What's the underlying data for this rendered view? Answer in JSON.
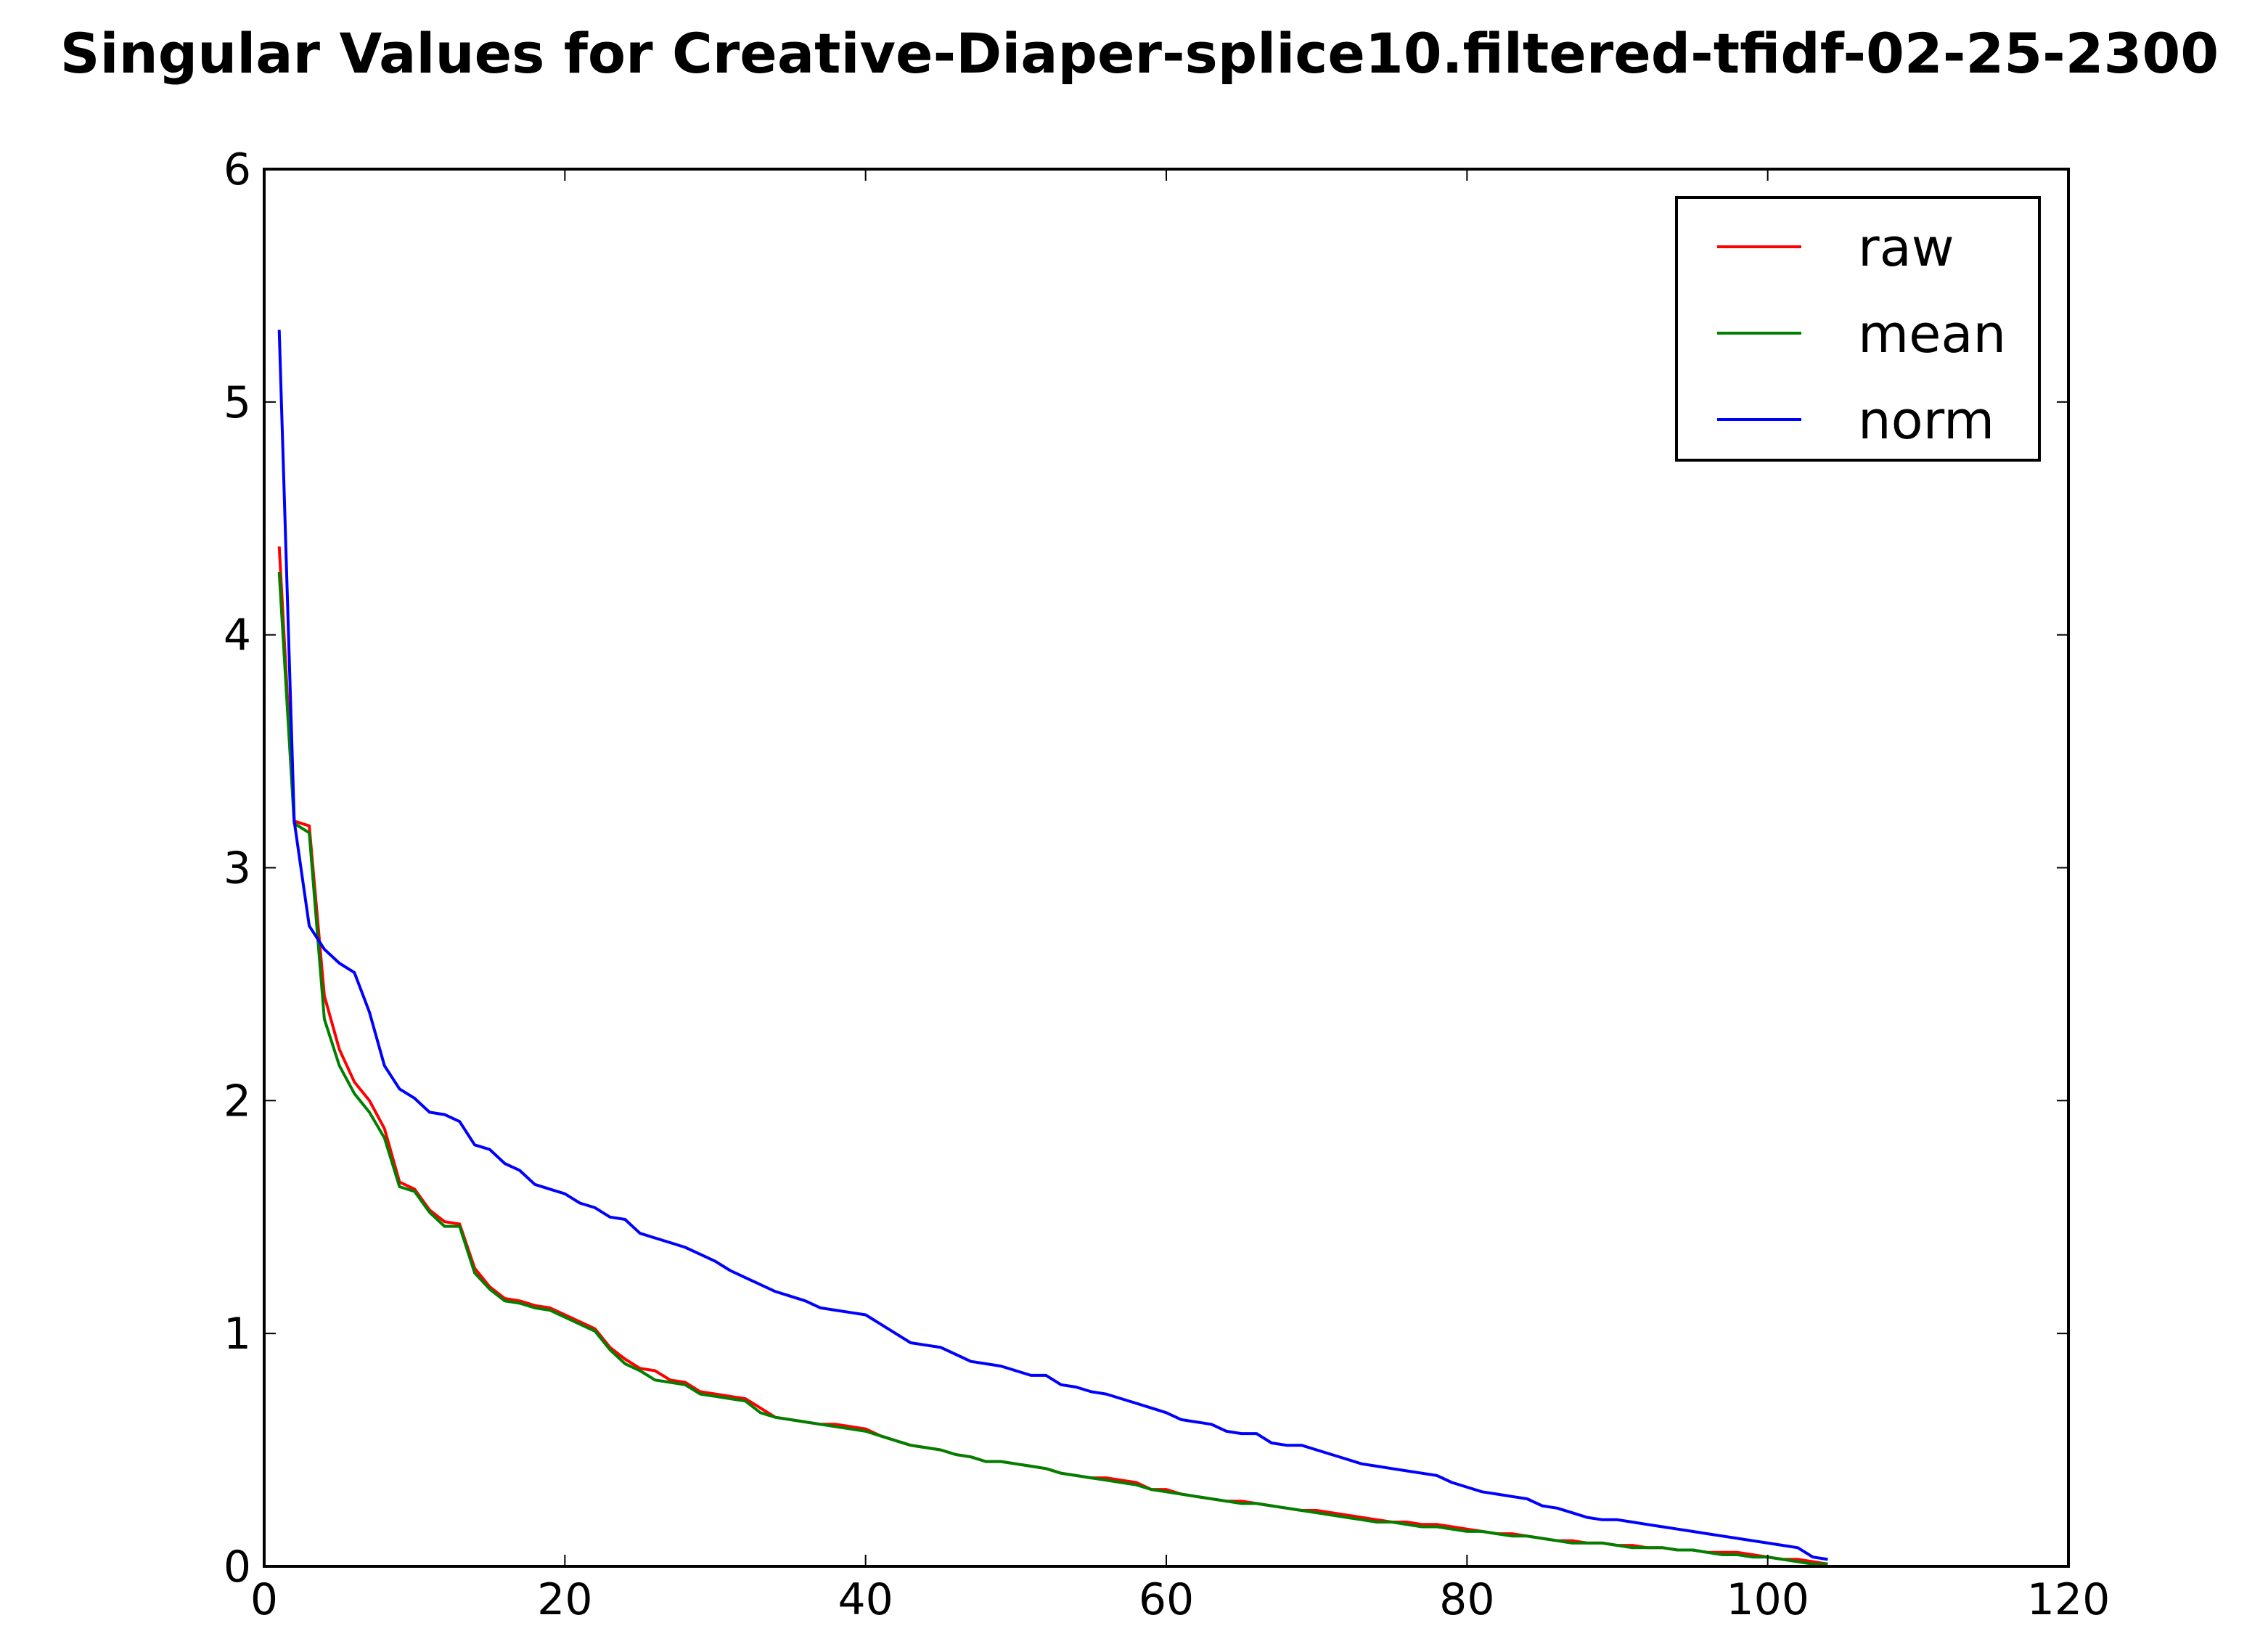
{
  "chart_data": {
    "type": "line",
    "title": "Singular Values for Creative-Diaper-splice10.filtered-tfidf-02-25-2300",
    "xlabel": "",
    "ylabel": "",
    "xlim": [
      0,
      120
    ],
    "ylim": [
      0,
      6
    ],
    "xticks": [
      0,
      20,
      40,
      60,
      80,
      100,
      120
    ],
    "yticks": [
      0,
      1,
      2,
      3,
      4,
      5,
      6
    ],
    "x_tick_labels": [
      "0",
      "20",
      "40",
      "60",
      "80",
      "100",
      "120"
    ],
    "y_tick_labels": [
      "0",
      "1",
      "2",
      "3",
      "4",
      "5",
      "6"
    ],
    "grid": false,
    "legend_position": "top-right",
    "series": [
      {
        "name": "raw",
        "color": "#ff0000",
        "points": [
          [
            1,
            4.38
          ],
          [
            2,
            3.2
          ],
          [
            3,
            3.18
          ],
          [
            4,
            2.45
          ],
          [
            5,
            2.22
          ],
          [
            6,
            2.08
          ],
          [
            7,
            2.0
          ],
          [
            8,
            1.88
          ],
          [
            9,
            1.65
          ],
          [
            10,
            1.62
          ],
          [
            11,
            1.53
          ],
          [
            12,
            1.48
          ],
          [
            13,
            1.47
          ],
          [
            14,
            1.28
          ],
          [
            15,
            1.2
          ],
          [
            16,
            1.15
          ],
          [
            17,
            1.14
          ],
          [
            18,
            1.12
          ],
          [
            19,
            1.11
          ],
          [
            20,
            1.08
          ],
          [
            21,
            1.05
          ],
          [
            22,
            1.02
          ],
          [
            23,
            0.94
          ],
          [
            24,
            0.89
          ],
          [
            25,
            0.85
          ],
          [
            26,
            0.84
          ],
          [
            27,
            0.8
          ],
          [
            28,
            0.79
          ],
          [
            29,
            0.75
          ],
          [
            30,
            0.74
          ],
          [
            31,
            0.73
          ],
          [
            32,
            0.72
          ],
          [
            33,
            0.68
          ],
          [
            34,
            0.64
          ],
          [
            35,
            0.63
          ],
          [
            36,
            0.62
          ],
          [
            37,
            0.61
          ],
          [
            38,
            0.61
          ],
          [
            39,
            0.6
          ],
          [
            40,
            0.59
          ],
          [
            41,
            0.56
          ],
          [
            42,
            0.54
          ],
          [
            43,
            0.52
          ],
          [
            44,
            0.51
          ],
          [
            45,
            0.5
          ],
          [
            46,
            0.48
          ],
          [
            47,
            0.47
          ],
          [
            48,
            0.45
          ],
          [
            49,
            0.45
          ],
          [
            50,
            0.44
          ],
          [
            51,
            0.43
          ],
          [
            52,
            0.42
          ],
          [
            53,
            0.4
          ],
          [
            54,
            0.39
          ],
          [
            55,
            0.38
          ],
          [
            56,
            0.38
          ],
          [
            57,
            0.37
          ],
          [
            58,
            0.36
          ],
          [
            59,
            0.33
          ],
          [
            60,
            0.33
          ],
          [
            61,
            0.31
          ],
          [
            62,
            0.3
          ],
          [
            63,
            0.29
          ],
          [
            64,
            0.28
          ],
          [
            65,
            0.28
          ],
          [
            66,
            0.27
          ],
          [
            67,
            0.26
          ],
          [
            68,
            0.25
          ],
          [
            69,
            0.24
          ],
          [
            70,
            0.24
          ],
          [
            71,
            0.23
          ],
          [
            72,
            0.22
          ],
          [
            73,
            0.21
          ],
          [
            74,
            0.2
          ],
          [
            75,
            0.19
          ],
          [
            76,
            0.19
          ],
          [
            77,
            0.18
          ],
          [
            78,
            0.18
          ],
          [
            79,
            0.17
          ],
          [
            80,
            0.16
          ],
          [
            81,
            0.15
          ],
          [
            82,
            0.14
          ],
          [
            83,
            0.14
          ],
          [
            84,
            0.13
          ],
          [
            85,
            0.12
          ],
          [
            86,
            0.11
          ],
          [
            87,
            0.11
          ],
          [
            88,
            0.1
          ],
          [
            89,
            0.1
          ],
          [
            90,
            0.09
          ],
          [
            91,
            0.09
          ],
          [
            92,
            0.08
          ],
          [
            93,
            0.08
          ],
          [
            94,
            0.07
          ],
          [
            95,
            0.07
          ],
          [
            96,
            0.06
          ],
          [
            97,
            0.06
          ],
          [
            98,
            0.06
          ],
          [
            99,
            0.05
          ],
          [
            100,
            0.04
          ],
          [
            101,
            0.03
          ],
          [
            102,
            0.03
          ],
          [
            103,
            0.02
          ],
          [
            104,
            0.01
          ]
        ]
      },
      {
        "name": "mean",
        "color": "#008000",
        "points": [
          [
            1,
            4.27
          ],
          [
            2,
            3.19
          ],
          [
            3,
            3.15
          ],
          [
            4,
            2.35
          ],
          [
            5,
            2.15
          ],
          [
            6,
            2.03
          ],
          [
            7,
            1.95
          ],
          [
            8,
            1.84
          ],
          [
            9,
            1.63
          ],
          [
            10,
            1.61
          ],
          [
            11,
            1.52
          ],
          [
            12,
            1.46
          ],
          [
            13,
            1.46
          ],
          [
            14,
            1.26
          ],
          [
            15,
            1.19
          ],
          [
            16,
            1.14
          ],
          [
            17,
            1.13
          ],
          [
            18,
            1.11
          ],
          [
            19,
            1.1
          ],
          [
            20,
            1.07
          ],
          [
            21,
            1.04
          ],
          [
            22,
            1.01
          ],
          [
            23,
            0.93
          ],
          [
            24,
            0.87
          ],
          [
            25,
            0.84
          ],
          [
            26,
            0.8
          ],
          [
            27,
            0.79
          ],
          [
            28,
            0.78
          ],
          [
            29,
            0.74
          ],
          [
            30,
            0.73
          ],
          [
            31,
            0.72
          ],
          [
            32,
            0.71
          ],
          [
            33,
            0.66
          ],
          [
            34,
            0.64
          ],
          [
            35,
            0.63
          ],
          [
            36,
            0.62
          ],
          [
            37,
            0.61
          ],
          [
            38,
            0.6
          ],
          [
            39,
            0.59
          ],
          [
            40,
            0.58
          ],
          [
            41,
            0.56
          ],
          [
            42,
            0.54
          ],
          [
            43,
            0.52
          ],
          [
            44,
            0.51
          ],
          [
            45,
            0.5
          ],
          [
            46,
            0.48
          ],
          [
            47,
            0.47
          ],
          [
            48,
            0.45
          ],
          [
            49,
            0.45
          ],
          [
            50,
            0.44
          ],
          [
            51,
            0.43
          ],
          [
            52,
            0.42
          ],
          [
            53,
            0.4
          ],
          [
            54,
            0.39
          ],
          [
            55,
            0.38
          ],
          [
            56,
            0.37
          ],
          [
            57,
            0.36
          ],
          [
            58,
            0.35
          ],
          [
            59,
            0.33
          ],
          [
            60,
            0.32
          ],
          [
            61,
            0.31
          ],
          [
            62,
            0.3
          ],
          [
            63,
            0.29
          ],
          [
            64,
            0.28
          ],
          [
            65,
            0.27
          ],
          [
            66,
            0.27
          ],
          [
            67,
            0.26
          ],
          [
            68,
            0.25
          ],
          [
            69,
            0.24
          ],
          [
            70,
            0.23
          ],
          [
            71,
            0.22
          ],
          [
            72,
            0.21
          ],
          [
            73,
            0.2
          ],
          [
            74,
            0.19
          ],
          [
            75,
            0.19
          ],
          [
            76,
            0.18
          ],
          [
            77,
            0.17
          ],
          [
            78,
            0.17
          ],
          [
            79,
            0.16
          ],
          [
            80,
            0.15
          ],
          [
            81,
            0.15
          ],
          [
            82,
            0.14
          ],
          [
            83,
            0.13
          ],
          [
            84,
            0.13
          ],
          [
            85,
            0.12
          ],
          [
            86,
            0.11
          ],
          [
            87,
            0.1
          ],
          [
            88,
            0.1
          ],
          [
            89,
            0.1
          ],
          [
            90,
            0.09
          ],
          [
            91,
            0.08
          ],
          [
            92,
            0.08
          ],
          [
            93,
            0.08
          ],
          [
            94,
            0.07
          ],
          [
            95,
            0.07
          ],
          [
            96,
            0.06
          ],
          [
            97,
            0.05
          ],
          [
            98,
            0.05
          ],
          [
            99,
            0.04
          ],
          [
            100,
            0.04
          ],
          [
            101,
            0.03
          ],
          [
            102,
            0.02
          ],
          [
            103,
            0.01
          ],
          [
            104,
            0.01
          ]
        ]
      },
      {
        "name": "norm",
        "color": "#0000ff",
        "points": [
          [
            1,
            5.31
          ],
          [
            2,
            3.2
          ],
          [
            3,
            2.75
          ],
          [
            4,
            2.65
          ],
          [
            5,
            2.59
          ],
          [
            6,
            2.55
          ],
          [
            7,
            2.38
          ],
          [
            8,
            2.15
          ],
          [
            9,
            2.05
          ],
          [
            10,
            2.01
          ],
          [
            11,
            1.95
          ],
          [
            12,
            1.94
          ],
          [
            13,
            1.91
          ],
          [
            14,
            1.81
          ],
          [
            15,
            1.79
          ],
          [
            16,
            1.73
          ],
          [
            17,
            1.7
          ],
          [
            18,
            1.64
          ],
          [
            19,
            1.62
          ],
          [
            20,
            1.6
          ],
          [
            21,
            1.56
          ],
          [
            22,
            1.54
          ],
          [
            23,
            1.5
          ],
          [
            24,
            1.49
          ],
          [
            25,
            1.43
          ],
          [
            26,
            1.41
          ],
          [
            27,
            1.39
          ],
          [
            28,
            1.37
          ],
          [
            29,
            1.34
          ],
          [
            30,
            1.31
          ],
          [
            31,
            1.27
          ],
          [
            32,
            1.24
          ],
          [
            33,
            1.21
          ],
          [
            34,
            1.18
          ],
          [
            35,
            1.16
          ],
          [
            36,
            1.14
          ],
          [
            37,
            1.11
          ],
          [
            38,
            1.1
          ],
          [
            39,
            1.09
          ],
          [
            40,
            1.08
          ],
          [
            41,
            1.04
          ],
          [
            42,
            1.0
          ],
          [
            43,
            0.96
          ],
          [
            44,
            0.95
          ],
          [
            45,
            0.94
          ],
          [
            46,
            0.91
          ],
          [
            47,
            0.88
          ],
          [
            48,
            0.87
          ],
          [
            49,
            0.86
          ],
          [
            50,
            0.84
          ],
          [
            51,
            0.82
          ],
          [
            52,
            0.82
          ],
          [
            53,
            0.78
          ],
          [
            54,
            0.77
          ],
          [
            55,
            0.75
          ],
          [
            56,
            0.74
          ],
          [
            57,
            0.72
          ],
          [
            58,
            0.7
          ],
          [
            59,
            0.68
          ],
          [
            60,
            0.66
          ],
          [
            61,
            0.63
          ],
          [
            62,
            0.62
          ],
          [
            63,
            0.61
          ],
          [
            64,
            0.58
          ],
          [
            65,
            0.57
          ],
          [
            66,
            0.57
          ],
          [
            67,
            0.53
          ],
          [
            68,
            0.52
          ],
          [
            69,
            0.52
          ],
          [
            70,
            0.5
          ],
          [
            71,
            0.48
          ],
          [
            72,
            0.46
          ],
          [
            73,
            0.44
          ],
          [
            74,
            0.43
          ],
          [
            75,
            0.42
          ],
          [
            76,
            0.41
          ],
          [
            77,
            0.4
          ],
          [
            78,
            0.39
          ],
          [
            79,
            0.36
          ],
          [
            80,
            0.34
          ],
          [
            81,
            0.32
          ],
          [
            82,
            0.31
          ],
          [
            83,
            0.3
          ],
          [
            84,
            0.29
          ],
          [
            85,
            0.26
          ],
          [
            86,
            0.25
          ],
          [
            87,
            0.23
          ],
          [
            88,
            0.21
          ],
          [
            89,
            0.2
          ],
          [
            90,
            0.2
          ],
          [
            91,
            0.19
          ],
          [
            92,
            0.18
          ],
          [
            93,
            0.17
          ],
          [
            94,
            0.16
          ],
          [
            95,
            0.15
          ],
          [
            96,
            0.14
          ],
          [
            97,
            0.13
          ],
          [
            98,
            0.12
          ],
          [
            99,
            0.11
          ],
          [
            100,
            0.1
          ],
          [
            101,
            0.09
          ],
          [
            102,
            0.08
          ],
          [
            103,
            0.04
          ],
          [
            104,
            0.03
          ]
        ]
      }
    ]
  }
}
